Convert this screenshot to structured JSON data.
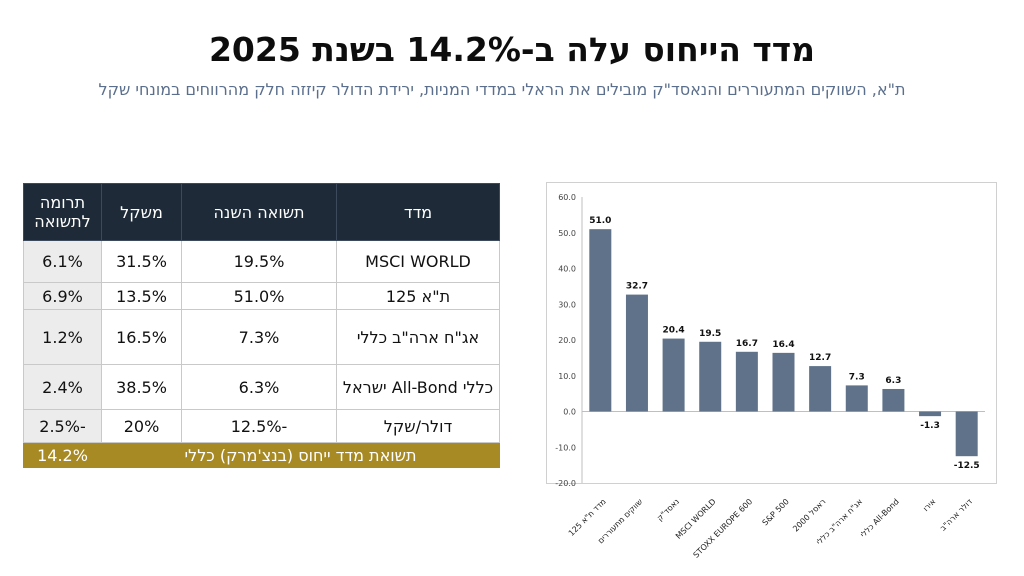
{
  "title": "מדד הייחוס עלה ב-14.2% בשנת 2025",
  "subtitle": "ת\"א, השווקים המתעוררים והנאסד\"ק מובילים את הראלי במדדי המניות, ירידת הדולר קיזזה חלק מהרווחים במונחי שקל",
  "table": {
    "headers": {
      "index": "מדד",
      "return": "תשואה השנה",
      "weight": "משקל",
      "contribution": "תרומה לתשואה"
    },
    "rows": [
      {
        "index": "MSCI WORLD",
        "return": "19.5%",
        "weight": "31.5%",
        "contribution": "6.1%"
      },
      {
        "index": "ת\"א 125",
        "return": "51.0%",
        "weight": "13.5%",
        "contribution": "6.9%"
      },
      {
        "index": "אג\"ח ארה\"ב כללי",
        "return": "7.3%",
        "weight": "16.5%",
        "contribution": "1.2%"
      },
      {
        "index": "כללי All-Bond ישראל",
        "return": "6.3%",
        "weight": "38.5%",
        "contribution": "2.4%"
      },
      {
        "index": "דולר/שקל",
        "return": "-12.5%",
        "weight": "20%",
        "contribution": "-2.5%"
      }
    ],
    "total": {
      "label": "תשואת מדד ייחוס (בנצ'מרק) כללי",
      "value": "14.2%"
    }
  },
  "colors": {
    "bar": "#5f7289",
    "header": "#1e2a38",
    "total": "#a88a25"
  },
  "chart_data": {
    "type": "bar",
    "categories": [
      "מדד ת\"א 125",
      "שווקים מתעוררים",
      "נאסד\"ק",
      "MSCI WORLD",
      "STOXX EUROPE 600",
      "S&P 500",
      "ראסל 2000",
      "אג\"ח ארה\"ב כללי",
      "כללי All-Bond",
      "אירו",
      "דולר ארה\"ב"
    ],
    "values": [
      51.0,
      32.7,
      20.4,
      19.5,
      16.7,
      16.4,
      12.7,
      7.3,
      6.3,
      -1.3,
      -12.5
    ],
    "data_labels": [
      "51.0",
      "32.7",
      "20.4",
      "19.5",
      "16.7",
      "16.4",
      "12.7",
      "7.3",
      "6.3",
      "-1.3",
      "-12.5"
    ],
    "ylim": [
      -20,
      60
    ],
    "yticks": [
      "60.0",
      "50.0",
      "40.0",
      "30.0",
      "20.0",
      "10.0",
      "0.0",
      "-10.0",
      "-20.0"
    ],
    "grid": false,
    "legend": "none"
  }
}
